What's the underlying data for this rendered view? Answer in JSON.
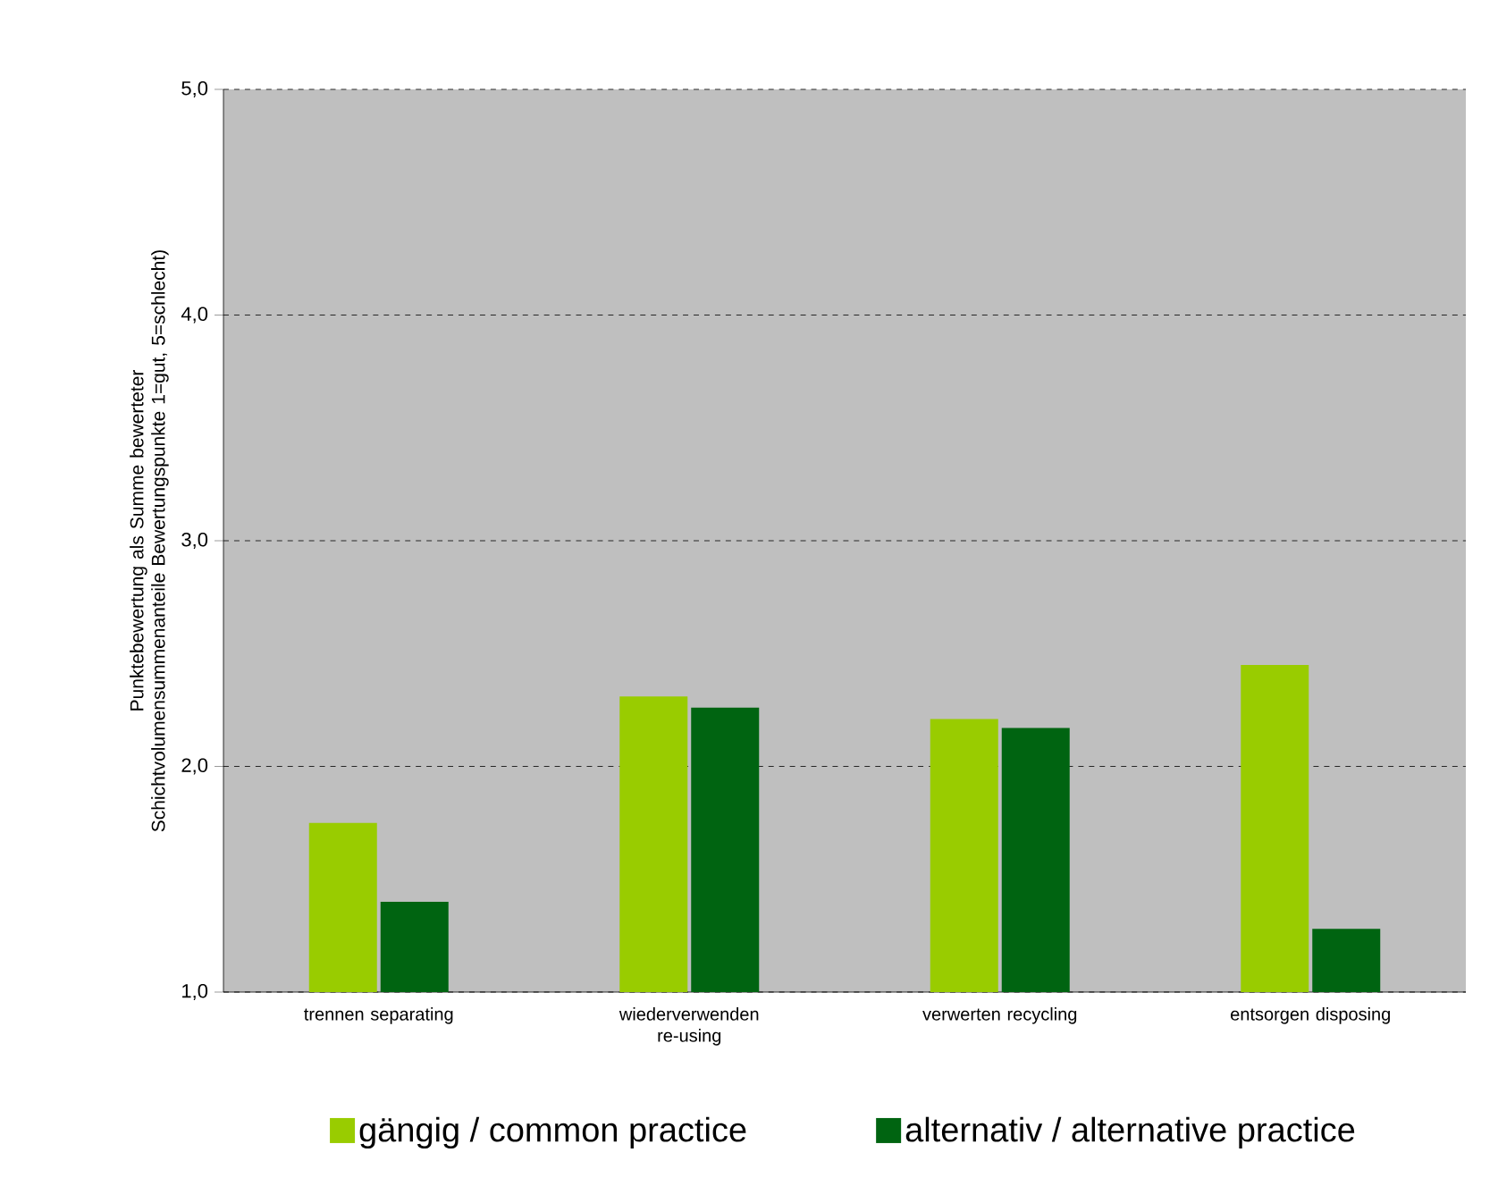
{
  "chart_data": {
    "type": "bar",
    "ylabel": "Punktebewertung als Summe bewerteter Schichtvolumensummenanteile Bewertungspunkte 1=gut, 5=schlecht)",
    "categories": [
      "trennen separating",
      "wiederverwenden re-using",
      "verwerten recycling",
      "entsorgen disposing"
    ],
    "series": [
      {
        "name": "gängig / common practice",
        "color": "#99cc00",
        "values": [
          1.75,
          2.31,
          2.21,
          2.45
        ]
      },
      {
        "name": "alternativ / alternative practice",
        "color": "#006411",
        "values": [
          1.4,
          2.26,
          2.17,
          1.28
        ]
      }
    ],
    "ylim": [
      1,
      5
    ],
    "yticks": [
      {
        "value": 1,
        "label": "1,0"
      },
      {
        "value": 2,
        "label": "2,0"
      },
      {
        "value": 3,
        "label": "3,0"
      },
      {
        "value": 4,
        "label": "4,0"
      },
      {
        "value": 5,
        "label": "5,0"
      }
    ],
    "grid": "y",
    "legend": "bottom"
  }
}
